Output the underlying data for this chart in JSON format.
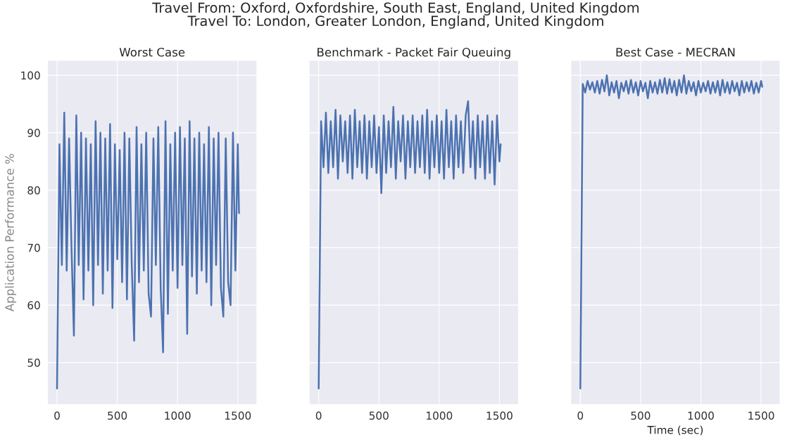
{
  "chart_data": [
    {
      "type": "line",
      "title": "Worst Case",
      "ylabel": "Application Performance %",
      "annotations": [
        "Travel From: Oxford, Oxfordshire, South East, England, United Kingdom\nTravel To: London, Greater London, England, United Kingdom"
      ],
      "xlim": [
        -79,
        1658
      ],
      "ylim": [
        42.7,
        102.6
      ],
      "xticks": [
        0,
        500,
        1000,
        1500
      ],
      "yticks": [
        50,
        60,
        70,
        80,
        90,
        100
      ],
      "grid": true,
      "series": [
        {
          "color": "#4c72b0",
          "x": [
            0,
            20,
            40,
            60,
            80,
            100,
            120,
            140,
            160,
            180,
            200,
            220,
            240,
            260,
            280,
            300,
            320,
            340,
            360,
            380,
            400,
            420,
            440,
            460,
            480,
            500,
            520,
            540,
            560,
            580,
            600,
            620,
            640,
            660,
            680,
            700,
            720,
            740,
            760,
            780,
            800,
            820,
            840,
            860,
            880,
            900,
            920,
            940,
            960,
            980,
            1000,
            1020,
            1040,
            1060,
            1080,
            1100,
            1120,
            1140,
            1160,
            1180,
            1200,
            1220,
            1240,
            1260,
            1280,
            1300,
            1320,
            1340,
            1360,
            1380,
            1400,
            1420,
            1440,
            1460,
            1480,
            1500,
            1510
          ],
          "values": [
            45.5,
            88,
            67,
            93.5,
            66,
            89,
            70,
            54.7,
            93,
            67,
            90,
            61,
            89,
            66,
            88,
            60,
            92,
            67,
            90,
            62,
            89,
            66,
            91.5,
            59.5,
            88,
            68,
            87,
            64,
            90,
            61,
            89,
            67,
            53.8,
            91,
            64,
            88,
            66,
            90,
            62,
            58,
            89,
            67,
            91,
            63,
            51.8,
            92,
            58.5,
            88,
            66,
            90,
            63,
            91,
            67,
            89,
            55,
            92,
            65,
            89,
            62,
            90,
            66,
            88,
            64,
            91,
            60,
            89,
            67,
            90,
            63,
            58,
            89,
            64,
            60,
            90,
            66,
            88,
            76
          ]
        }
      ]
    },
    {
      "type": "line",
      "title": "Benchmark - Packet Fair Queuing",
      "xlim": [
        -79,
        1658
      ],
      "ylim": [
        42.7,
        102.6
      ],
      "xticks": [
        0,
        500,
        1000,
        1500
      ],
      "yticks": [
        50,
        60,
        70,
        80,
        90,
        100
      ],
      "grid": true,
      "tick_labels": "x",
      "series": [
        {
          "color": "#4c72b0",
          "x": [
            0,
            20,
            40,
            60,
            80,
            100,
            120,
            140,
            160,
            180,
            200,
            220,
            240,
            260,
            280,
            300,
            320,
            340,
            360,
            380,
            400,
            420,
            440,
            460,
            480,
            500,
            520,
            540,
            560,
            580,
            600,
            620,
            640,
            660,
            680,
            700,
            720,
            740,
            760,
            780,
            800,
            820,
            840,
            860,
            880,
            900,
            920,
            940,
            960,
            980,
            1000,
            1020,
            1040,
            1060,
            1080,
            1100,
            1120,
            1140,
            1160,
            1180,
            1200,
            1220,
            1240,
            1260,
            1280,
            1300,
            1320,
            1340,
            1360,
            1380,
            1400,
            1420,
            1440,
            1460,
            1480,
            1500,
            1510
          ],
          "values": [
            45.5,
            92,
            84,
            93.5,
            83,
            92,
            84,
            94,
            82,
            93,
            85,
            92,
            83,
            93,
            82,
            94,
            84,
            92,
            83,
            93,
            82,
            92,
            84,
            93,
            83,
            91,
            79.5,
            93,
            83,
            92,
            84,
            94.5,
            82,
            92,
            85,
            93,
            82,
            92,
            84,
            93,
            83,
            92,
            84,
            93,
            83,
            94,
            82,
            92,
            84,
            93,
            83,
            92,
            82,
            94,
            84,
            92,
            82,
            93,
            84,
            92,
            83,
            93,
            95.5,
            84,
            92,
            82,
            93,
            84,
            92,
            82,
            93,
            83,
            92,
            81,
            93,
            85,
            88
          ]
        }
      ]
    },
    {
      "type": "line",
      "title": "Best Case - MECRAN",
      "xlabel": "Time (sec)",
      "xlim": [
        -79,
        1658
      ],
      "ylim": [
        42.7,
        102.6
      ],
      "xticks": [
        0,
        500,
        1000,
        1500
      ],
      "yticks": [
        50,
        60,
        70,
        80,
        90,
        100
      ],
      "grid": true,
      "tick_labels": "x",
      "series": [
        {
          "color": "#4c72b0",
          "x": [
            0,
            20,
            40,
            60,
            80,
            100,
            120,
            140,
            160,
            180,
            200,
            220,
            240,
            260,
            280,
            300,
            320,
            340,
            360,
            380,
            400,
            420,
            440,
            460,
            480,
            500,
            520,
            540,
            560,
            580,
            600,
            620,
            640,
            660,
            680,
            700,
            720,
            740,
            760,
            780,
            800,
            820,
            840,
            860,
            880,
            900,
            920,
            940,
            960,
            980,
            1000,
            1020,
            1040,
            1060,
            1080,
            1100,
            1120,
            1140,
            1160,
            1180,
            1200,
            1220,
            1240,
            1260,
            1280,
            1300,
            1320,
            1340,
            1360,
            1380,
            1400,
            1420,
            1440,
            1460,
            1480,
            1500,
            1510
          ],
          "values": [
            45.5,
            98.5,
            97,
            99,
            97.5,
            98.8,
            97,
            99,
            96.8,
            99.2,
            97.2,
            100,
            96.5,
            98.8,
            97,
            99,
            96,
            98.7,
            97.2,
            99,
            96.8,
            99.2,
            97,
            98.8,
            96.5,
            99,
            97.2,
            98.7,
            96,
            99,
            97,
            98.8,
            96.8,
            99.2,
            97,
            99.5,
            96.8,
            99.3,
            97,
            99,
            96.5,
            99.2,
            97,
            100,
            96.8,
            99,
            97.2,
            98.8,
            96.5,
            99,
            97,
            98.7,
            97.2,
            99,
            96.8,
            98.8,
            97,
            99,
            96.5,
            99.2,
            97,
            98.8,
            96.8,
            99,
            97.2,
            98.7,
            96.5,
            99,
            97,
            98.8,
            97.2,
            99,
            96.8,
            98.7,
            97,
            99,
            98
          ]
        }
      ]
    }
  ]
}
